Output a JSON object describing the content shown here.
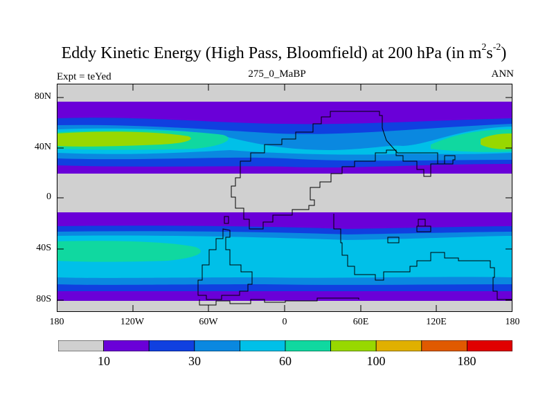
{
  "title": {
    "main": "Eddy Kinetic Energy (High Pass, Bloomfield) at 200 hPa (in m",
    "sup1": "2",
    "mid": "s",
    "sup2": "-2",
    "end": ")"
  },
  "subtitle": {
    "left": "Expt = teYed",
    "center": "275_0_MaBP",
    "right": "ANN"
  },
  "axes": {
    "y_ticks": [
      "80N",
      "40N",
      "0",
      "40S",
      "80S"
    ],
    "x_ticks": [
      "180",
      "120W",
      "60W",
      "0",
      "60E",
      "120E",
      "180"
    ]
  },
  "colorbar": {
    "colors": [
      "#d0d0d0",
      "#6a00d8",
      "#1040e0",
      "#0a88e0",
      "#00c0e8",
      "#10d8a0",
      "#98d800",
      "#e0b000",
      "#e05a00",
      "#e00000"
    ],
    "labels": [
      "10",
      "30",
      "60",
      "100",
      "180"
    ]
  }
}
